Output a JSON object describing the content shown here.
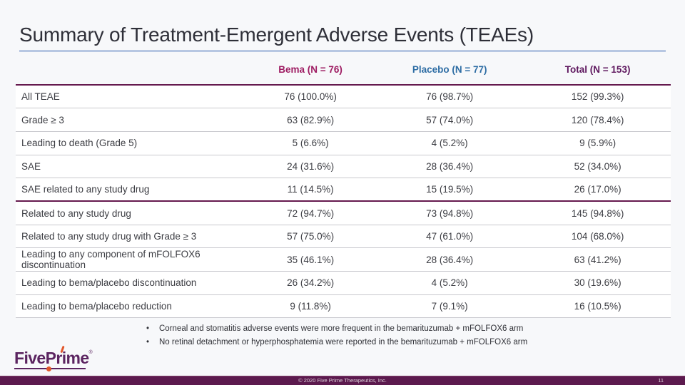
{
  "slide": {
    "title": "Summary of Treatment-Emergent Adverse Events (TEAEs)",
    "page_number": "11",
    "footer_copyright": "© 2020 Five Prime Therapeutics, Inc.",
    "logo_text": "FivePrime",
    "logo_reg": "®"
  },
  "colors": {
    "slide_background": "#f7f8fa",
    "title_text": "#2e2f38",
    "title_rule_blue": "#b7c7e2",
    "bema_header": "#9e1c62",
    "placebo_header": "#2e6da4",
    "total_header": "#5e175e",
    "table_rule_maroon": "#65194e",
    "row_separator": "#c9c9ce",
    "footer_bar": "#5c1a4e",
    "logo_purple": "#5b2460",
    "logo_orange": "#e2572b"
  },
  "table": {
    "columns": [
      "",
      "Bema (N = 76)",
      "Placebo (N = 77)",
      "Total (N = 153)"
    ],
    "rows": [
      {
        "label": "All TEAE",
        "bema": "76 (100.0%)",
        "placebo": "76 (98.7%)",
        "total": "152 (99.3%)"
      },
      {
        "label": "Grade ≥ 3",
        "bema": "63 (82.9%)",
        "placebo": "57 (74.0%)",
        "total": "120 (78.4%)"
      },
      {
        "label": "Leading to death (Grade 5)",
        "bema": "5 (6.6%)",
        "placebo": "4 (5.2%)",
        "total": "9 (5.9%)"
      },
      {
        "label": "SAE",
        "bema": "24 (31.6%)",
        "placebo": "28 (36.4%)",
        "total": "52 (34.0%)"
      },
      {
        "label": "SAE related to any study drug",
        "bema": "11 (14.5%)",
        "placebo": "15 (19.5%)",
        "total": "26 (17.0%)"
      },
      {
        "label": "Related to any study drug",
        "bema": "72 (94.7%)",
        "placebo": "73 (94.8%)",
        "total": "145 (94.8%)"
      },
      {
        "label": "Related to any study drug with Grade ≥ 3",
        "bema": "57 (75.0%)",
        "placebo": "47 (61.0%)",
        "total": "104 (68.0%)"
      },
      {
        "label": "Leading to any component of mFOLFOX6 discontinuation",
        "bema": "35 (46.1%)",
        "placebo": "28 (36.4%)",
        "total": "63 (41.2%)"
      },
      {
        "label": "Leading to bema/placebo discontinuation",
        "bema": "26 (34.2%)",
        "placebo": "4 (5.2%)",
        "total": "30 (19.6%)"
      },
      {
        "label": "Leading to bema/placebo reduction",
        "bema": "9 (11.8%)",
        "placebo": "7 (9.1%)",
        "total": "16 (10.5%)"
      }
    ]
  },
  "bullets": [
    "Corneal and stomatitis adverse events were more frequent in the bemarituzumab + mFOLFOX6 arm",
    "No retinal detachment or hyperphosphatemia were reported in the bemarituzumab + mFOLFOX6 arm"
  ]
}
